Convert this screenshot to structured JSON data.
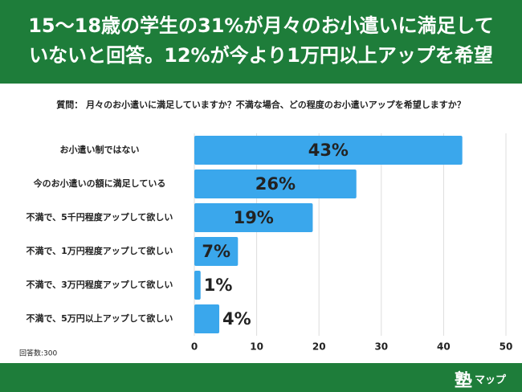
{
  "chart_data": {
    "type": "bar",
    "orientation": "horizontal",
    "title_lines": [
      "15〜18歳の学生の31%が月々のお小遣いに満足して",
      "いないと回答。12%が今より1万円以上アップを希望"
    ],
    "question": "質問： 月々のお小遣いに満足していますか？不満な場合、どの程度のお小遣いアップを希望しますか？",
    "categories": [
      "お小遣い制ではない",
      "今のお小遣いの額に満足している",
      "不満で、5千円程度アップして欲しい",
      "不満で、1万円程度アップして欲しい",
      "不満で、3万円程度アップして欲しい",
      "不満で、5万円以上アップして欲しい"
    ],
    "values": [
      43,
      26,
      19,
      7,
      1,
      4
    ],
    "value_labels": [
      "43%",
      "26%",
      "19%",
      "7%",
      "1%",
      "4%"
    ],
    "color": "#3aa7ec",
    "xlim": [
      0,
      50
    ],
    "xticks": [
      0,
      10,
      20,
      30,
      40,
      50
    ],
    "grid": true,
    "note": "回答数:300",
    "logo_mark": "塾",
    "logo_text": "マップ"
  }
}
